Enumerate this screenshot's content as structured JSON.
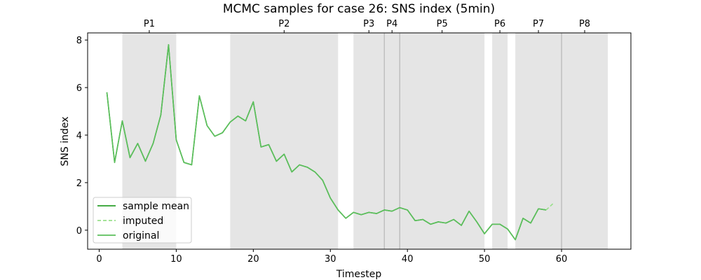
{
  "chart_data": {
    "type": "line",
    "title": "MCMC samples for case 26: SNS index (5min)",
    "xlabel": "Timestep",
    "ylabel": "SNS index",
    "xlim": [
      -1.5,
      69
    ],
    "ylim": [
      -0.8,
      8.3
    ],
    "xticks": [
      0,
      10,
      20,
      30,
      40,
      50,
      60
    ],
    "yticks": [
      0,
      2,
      4,
      6,
      8
    ],
    "grid": false,
    "legend_position": "lower-left",
    "phases": [
      {
        "label": "P1",
        "start": 3,
        "end": 10
      },
      {
        "label": "P2",
        "start": 17,
        "end": 31
      },
      {
        "label": "P3",
        "start": 33,
        "end": 37
      },
      {
        "label": "P4",
        "start": 37,
        "end": 39
      },
      {
        "label": "P5",
        "start": 39,
        "end": 50
      },
      {
        "label": "P6",
        "start": 51,
        "end": 53
      },
      {
        "label": "P7",
        "start": 54,
        "end": 60
      },
      {
        "label": "P8",
        "start": 60,
        "end": 66
      }
    ],
    "phase_boundaries": [
      37,
      39,
      60
    ],
    "series": [
      {
        "name": "sample mean",
        "style": "solid",
        "color": "#2ca02c",
        "x": [
          1,
          2,
          3,
          4,
          5,
          6,
          7,
          8,
          9,
          10,
          11,
          12,
          13,
          14,
          15,
          16,
          17,
          18,
          19,
          20,
          21,
          22,
          23,
          24,
          25,
          26,
          27,
          28,
          29,
          30,
          31,
          32,
          33,
          34,
          35,
          36,
          37,
          38,
          39,
          40,
          41,
          42,
          43,
          44,
          45,
          46,
          47,
          48,
          49,
          50,
          51,
          52,
          53,
          54,
          55,
          56,
          57,
          58
        ],
        "y": [
          5.8,
          2.85,
          4.6,
          3.05,
          3.65,
          2.9,
          3.65,
          4.85,
          7.8,
          3.8,
          2.85,
          2.75,
          5.65,
          4.4,
          3.95,
          4.1,
          4.55,
          4.8,
          4.6,
          5.4,
          3.5,
          3.6,
          2.9,
          3.2,
          2.45,
          2.75,
          2.65,
          2.45,
          2.1,
          1.35,
          0.85,
          0.5,
          0.75,
          0.65,
          0.75,
          0.7,
          0.85,
          0.8,
          0.95,
          0.85,
          0.4,
          0.45,
          0.25,
          0.35,
          0.3,
          0.45,
          0.2,
          0.8,
          0.35,
          -0.15,
          0.25,
          0.25,
          0.05,
          -0.4,
          0.5,
          0.3,
          0.9,
          0.85
        ]
      },
      {
        "name": "imputed",
        "style": "dashed",
        "color": "#98df8a",
        "x": [
          58,
          59
        ],
        "y": [
          0.85,
          1.15
        ]
      },
      {
        "name": "original",
        "style": "solid",
        "color": "#5cbf5c",
        "x": [
          1,
          2,
          3,
          4,
          5,
          6,
          7,
          8,
          9,
          10,
          11,
          12,
          13,
          14,
          15,
          16,
          17,
          18,
          19,
          20,
          21,
          22,
          23,
          24,
          25,
          26,
          27,
          28,
          29,
          30,
          31,
          32,
          33,
          34,
          35,
          36,
          37,
          38,
          39,
          40,
          41,
          42,
          43,
          44,
          45,
          46,
          47,
          48,
          49,
          50,
          51,
          52,
          53,
          54,
          55,
          56,
          57,
          58
        ],
        "y": [
          5.8,
          2.85,
          4.6,
          3.05,
          3.65,
          2.9,
          3.65,
          4.85,
          7.8,
          3.8,
          2.85,
          2.75,
          5.65,
          4.4,
          3.95,
          4.1,
          4.55,
          4.8,
          4.6,
          5.4,
          3.5,
          3.6,
          2.9,
          3.2,
          2.45,
          2.75,
          2.65,
          2.45,
          2.1,
          1.35,
          0.85,
          0.5,
          0.75,
          0.65,
          0.75,
          0.7,
          0.85,
          0.8,
          0.95,
          0.85,
          0.4,
          0.45,
          0.25,
          0.35,
          0.3,
          0.45,
          0.2,
          0.8,
          0.35,
          -0.15,
          0.25,
          0.25,
          0.05,
          -0.4,
          0.5,
          0.3,
          0.9,
          0.85
        ]
      }
    ]
  }
}
